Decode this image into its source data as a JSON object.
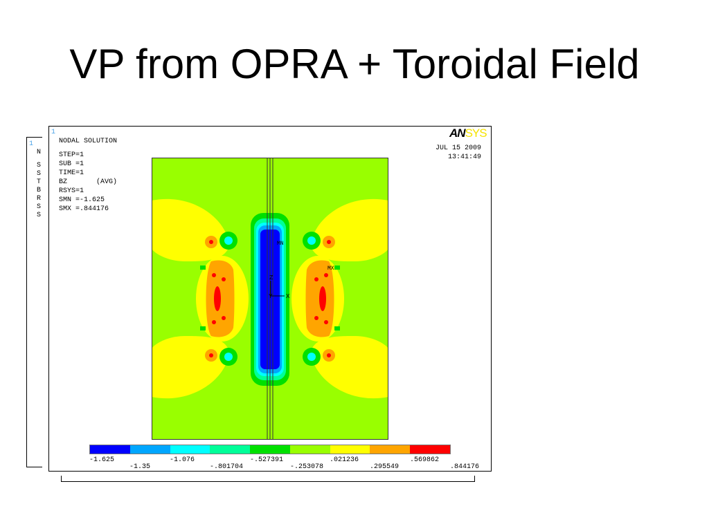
{
  "slide": {
    "title": "VP from OPRA + Toroidal Field"
  },
  "side_panel": {
    "window_number": "1",
    "letters": [
      "N",
      "S",
      "S",
      "T",
      "B",
      "R",
      "S",
      "S"
    ]
  },
  "window": {
    "number": "1",
    "logo": {
      "part1": "AN",
      "part2": "SYS"
    },
    "info_lines": [
      "NODAL SOLUTION",
      "",
      "STEP=1",
      "SUB =1",
      "TIME=1",
      "BZ       (AVG)",
      "RSYS=1",
      "SMN =-1.625",
      "SMX =.844176"
    ],
    "date": "JUL 15 2009",
    "time": "13:41:49",
    "plot_labels": {
      "mn": "MN",
      "mx": "MX",
      "z_axis": "Z",
      "y_axis": "Y",
      "x_axis": "X"
    }
  },
  "legend": {
    "colors": [
      "#0000ff",
      "#00a6ff",
      "#00ffff",
      "#00ff99",
      "#00e000",
      "#99ff00",
      "#ffff00",
      "#ffa500",
      "#ff0000"
    ],
    "top_labels": [
      "-1.625",
      "-1.076",
      "-.527391",
      ".021236",
      ".569862"
    ],
    "bottom_labels": [
      "-1.35",
      "-.801704",
      "-.253078",
      ".295549",
      ".844176"
    ]
  }
}
